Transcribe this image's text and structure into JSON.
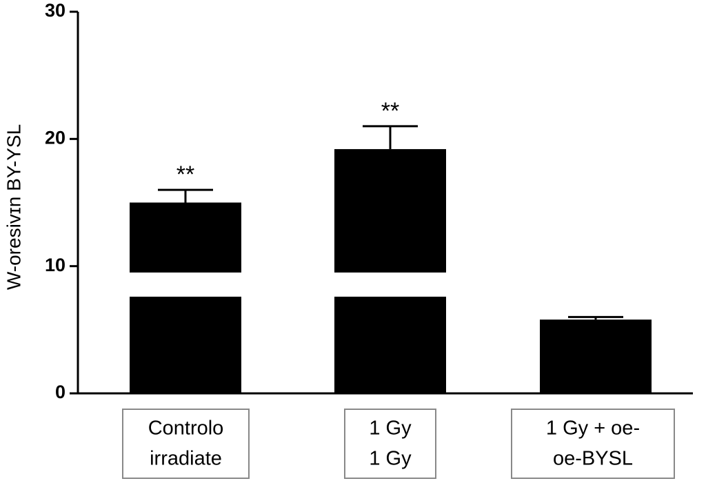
{
  "chart_data": {
    "type": "bar",
    "y_label": "W-oresivɪn BY-YSL",
    "categories": [
      [
        "Controlo",
        "irradiate"
      ],
      [
        "1 Gy",
        "1 Gy"
      ],
      [
        "1 Gy + oe-",
        "oe-BYSL"
      ]
    ],
    "values": [
      15,
      19.2,
      5.8
    ],
    "errors": [
      1,
      1.8,
      0.2
    ],
    "annotations": [
      "**",
      "**",
      null
    ],
    "color": "#000000",
    "ylim": [
      0,
      30
    ],
    "yticks": [
      0,
      10,
      20,
      30
    ],
    "axis_break": [
      7.6,
      9.5
    ]
  }
}
